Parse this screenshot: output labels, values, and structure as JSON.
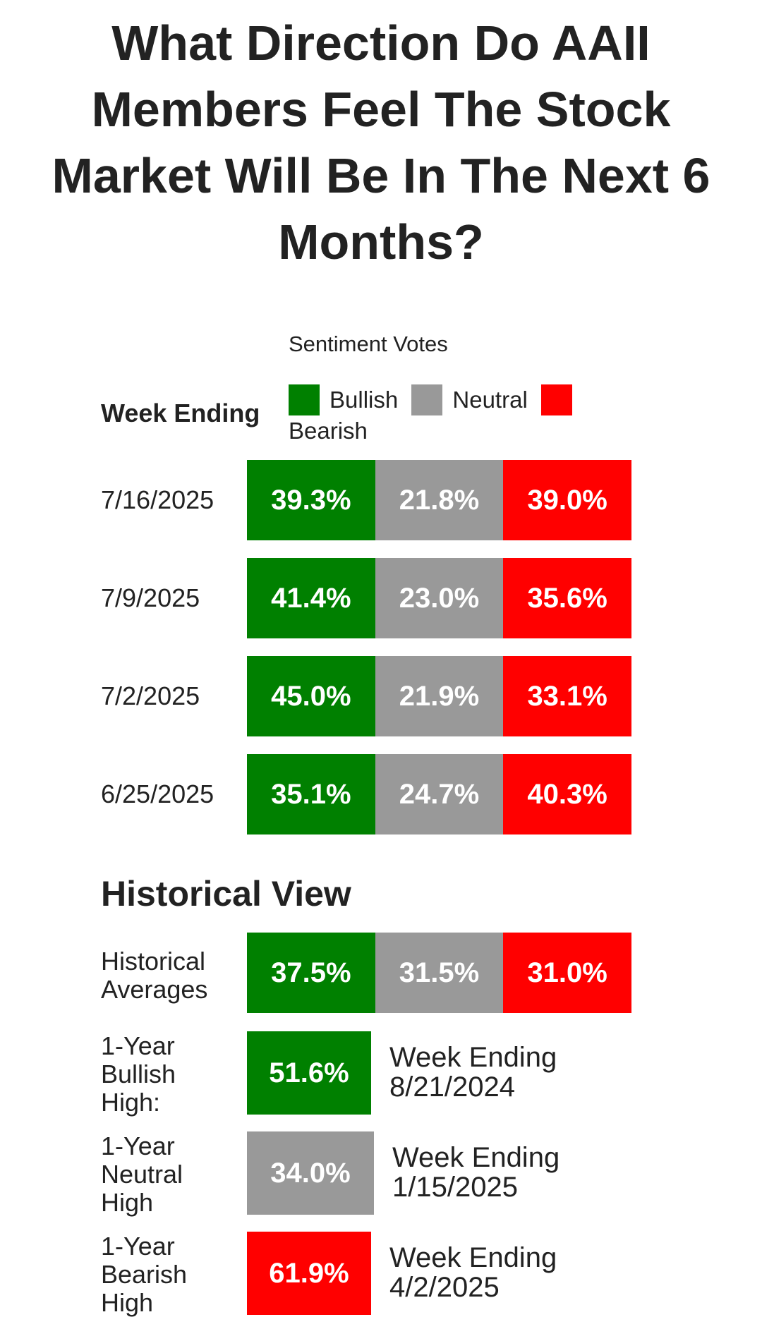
{
  "title": "What Direction Do AAII Members Feel The Stock Market Will Be In The Next 6 Months?",
  "sentiment_votes_label": "Sentiment Votes",
  "week_ending_header": "Week Ending",
  "legend": {
    "bullish": "Bullish",
    "neutral": "Neutral",
    "bearish": "Bearish"
  },
  "colors": {
    "bullish": "#008000",
    "neutral": "#999999",
    "bearish": "#ff0000"
  },
  "weeks": [
    {
      "date": "7/16/2025",
      "bullish": "39.3%",
      "neutral": "21.8%",
      "bearish": "39.0%"
    },
    {
      "date": "7/9/2025",
      "bullish": "41.4%",
      "neutral": "23.0%",
      "bearish": "35.6%"
    },
    {
      "date": "7/2/2025",
      "bullish": "45.0%",
      "neutral": "21.9%",
      "bearish": "33.1%"
    },
    {
      "date": "6/25/2025",
      "bullish": "35.1%",
      "neutral": "24.7%",
      "bearish": "40.3%"
    }
  ],
  "historical": {
    "title": "Historical View",
    "averages": {
      "label_line1": "Historical",
      "label_line2": "Averages",
      "bullish": "37.5%",
      "neutral": "31.5%",
      "bearish": "31.0%"
    },
    "highs": [
      {
        "l1": "1-Year",
        "l2": "Bullish",
        "l3": "High:",
        "value": "51.6%",
        "we_line1": "Week Ending",
        "we_line2": "8/21/2024"
      },
      {
        "l1": "1-Year",
        "l2": "Neutral",
        "l3": "High",
        "value": "34.0%",
        "we_line1": "Week Ending",
        "we_line2": "1/15/2025"
      },
      {
        "l1": "1-Year",
        "l2": "Bearish",
        "l3": "High",
        "value": "61.9%",
        "we_line1": "Week Ending",
        "we_line2": "4/2/2025"
      }
    ]
  }
}
